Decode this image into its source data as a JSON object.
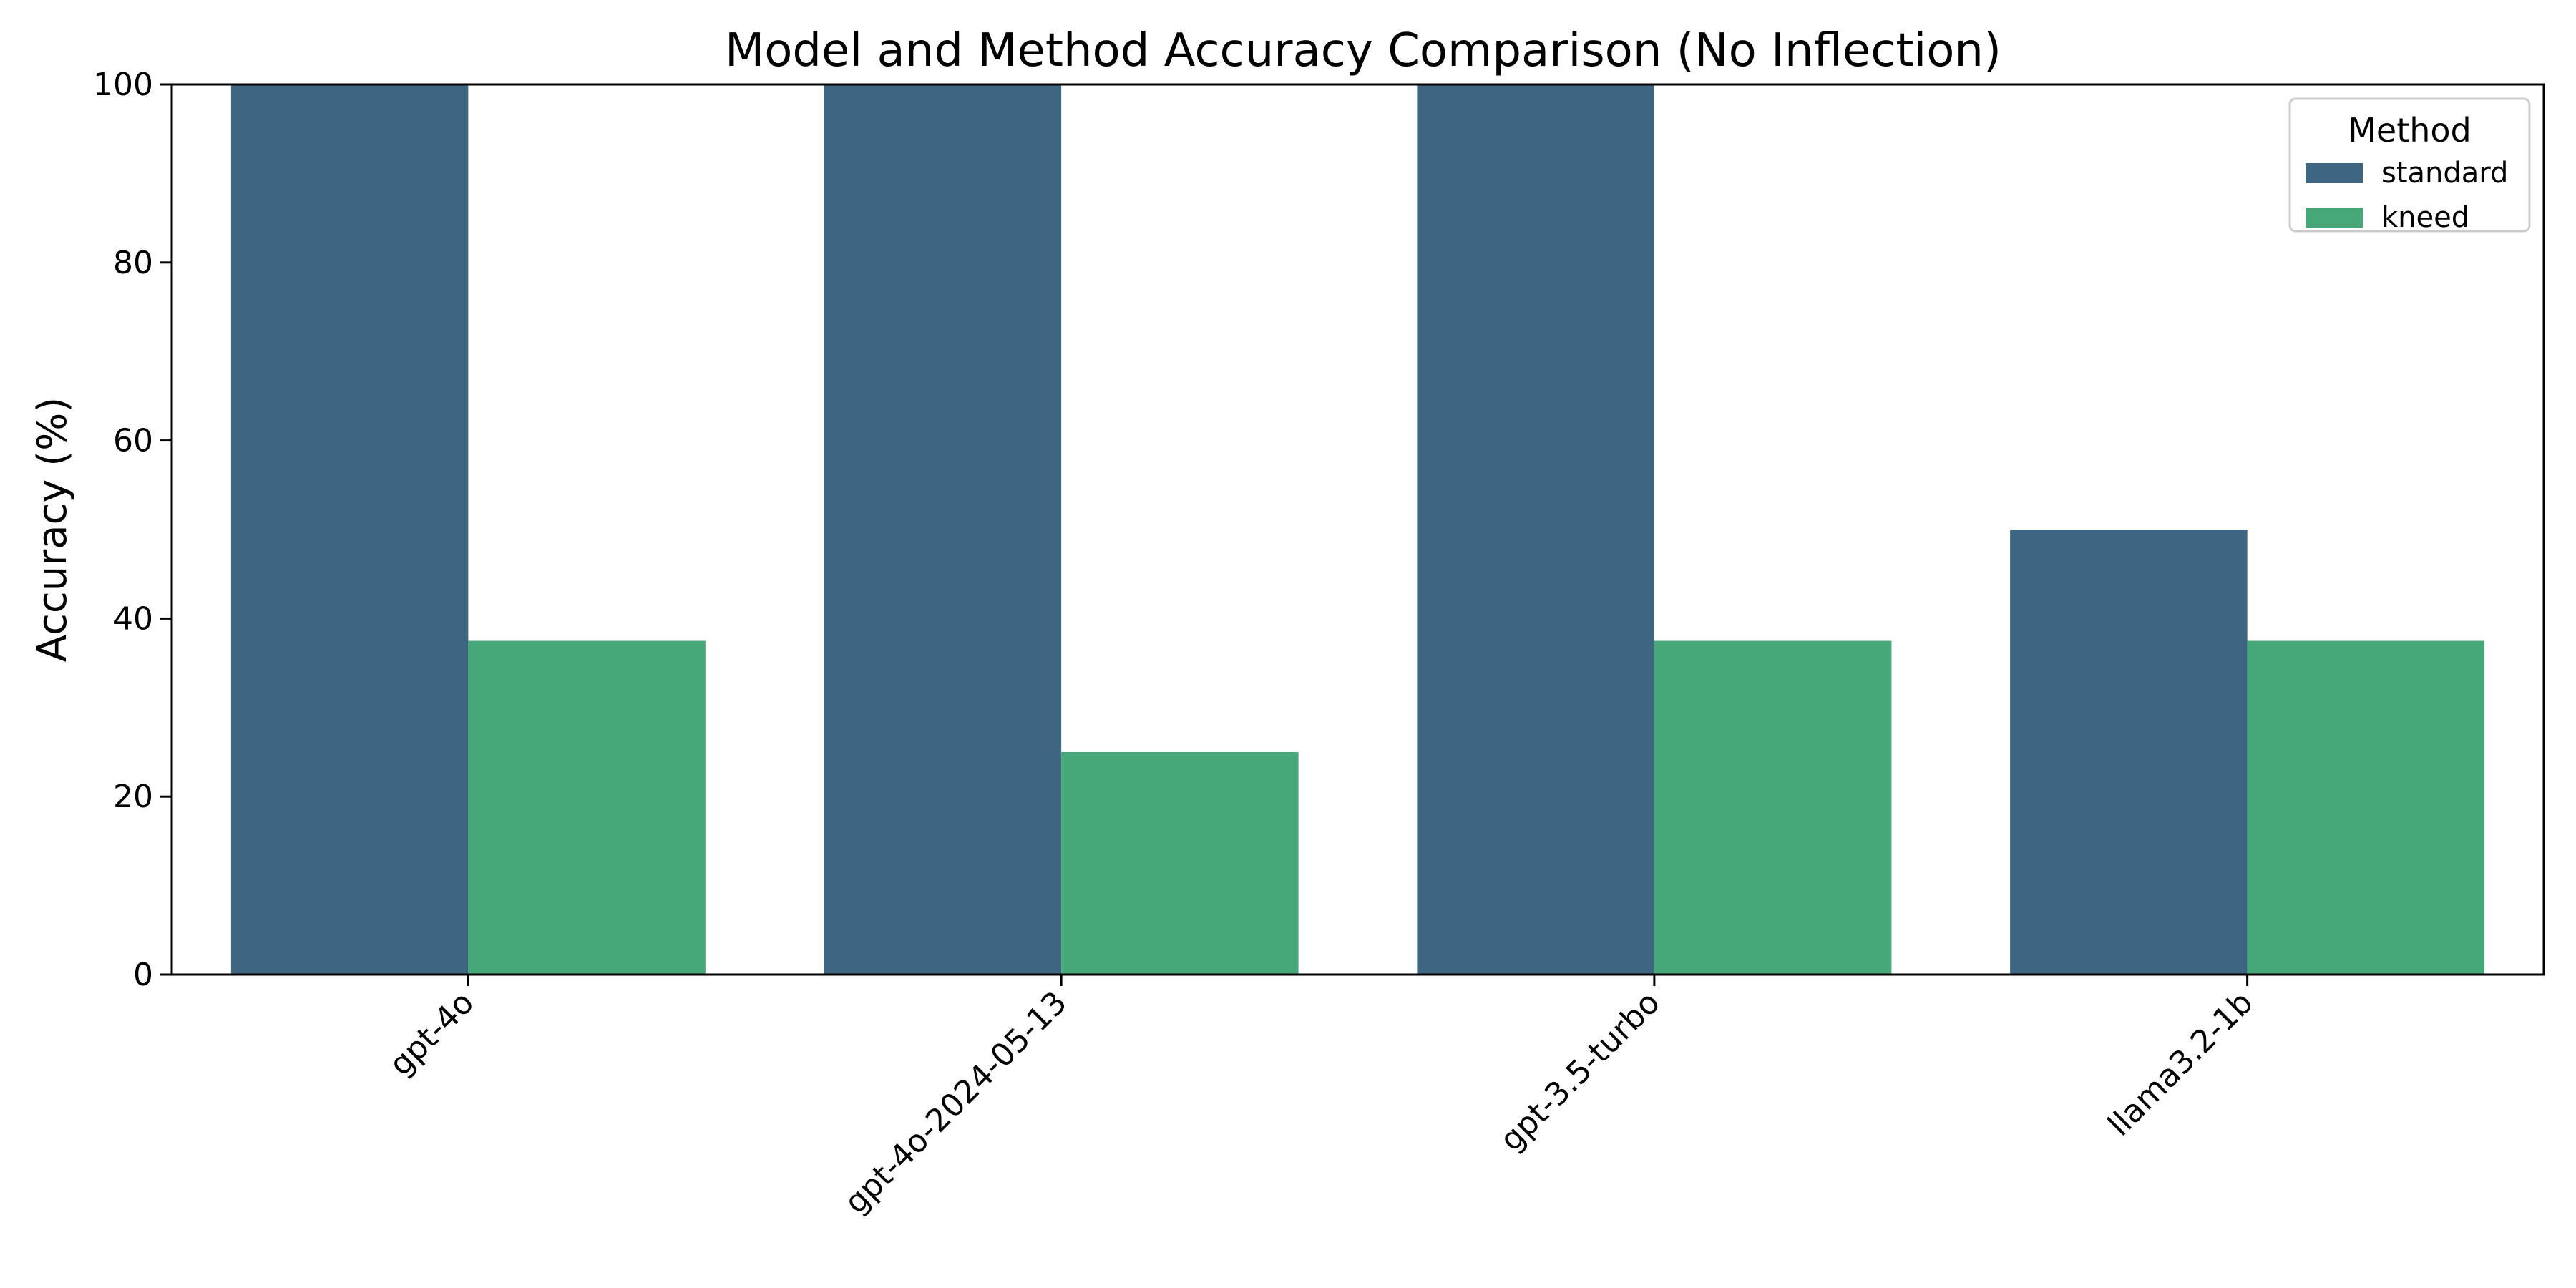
{
  "chart_data": {
    "type": "bar",
    "title": "Model and Method Accuracy Comparison (No Inflection)",
    "xlabel": "",
    "ylabel": "Accuracy (%)",
    "ylim": [
      0,
      100
    ],
    "yticks": [
      0,
      20,
      40,
      60,
      80,
      100
    ],
    "categories": [
      "gpt-4o",
      "gpt-4o-2024-05-13",
      "gpt-3.5-turbo",
      "llama3.2-1b"
    ],
    "series": [
      {
        "name": "standard",
        "color": "#3e6681",
        "values": [
          100,
          100,
          100,
          50
        ]
      },
      {
        "name": "kneed",
        "color": "#46a878",
        "values": [
          37.5,
          25,
          37.5,
          37.5
        ]
      }
    ],
    "legend": {
      "title": "Method",
      "position": "top-right"
    },
    "grid": false
  }
}
